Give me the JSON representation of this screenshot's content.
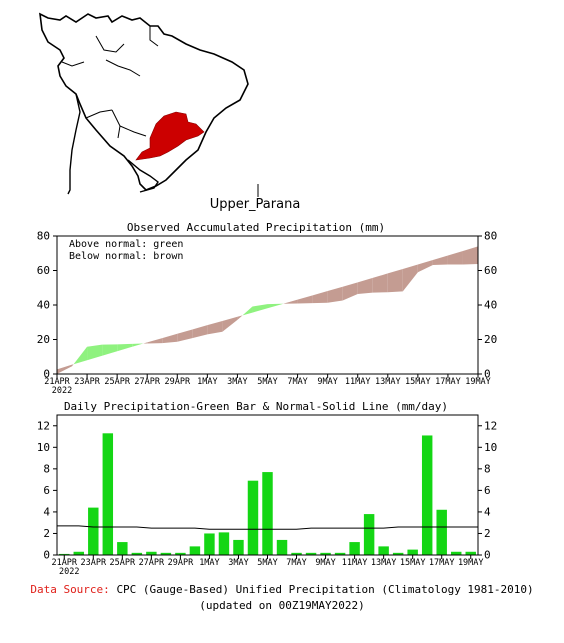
{
  "region_label": "Upper_Parana",
  "colors": {
    "above": "#8ff27f",
    "below": "#c49c92",
    "bar": "#14d614",
    "region": "#cc0000",
    "source_label": "#e0201a"
  },
  "chart_data": [
    {
      "type": "area",
      "title": "Observed Accumulated Precipitation (mm)",
      "legend": [
        "Above normal: green",
        "Below normal: brown"
      ],
      "legend_position": "top-left",
      "xlabel": "",
      "ylabel": "",
      "ylim": [
        0,
        80
      ],
      "yticks": [
        0,
        20,
        40,
        60,
        80
      ],
      "x_tick_labels": [
        "21APR",
        "23APR",
        "25APR",
        "27APR",
        "29APR",
        "1MAY",
        "3MAY",
        "5MAY",
        "7MAY",
        "9MAY",
        "11MAY",
        "13MAY",
        "15MAY",
        "17MAY",
        "19MAY"
      ],
      "x_year_label": "2022",
      "x": [
        "21APR",
        "22APR",
        "23APR",
        "24APR",
        "25APR",
        "26APR",
        "27APR",
        "28APR",
        "29APR",
        "30APR",
        "1MAY",
        "2MAY",
        "3MAY",
        "4MAY",
        "5MAY",
        "6MAY",
        "7MAY",
        "8MAY",
        "9MAY",
        "10MAY",
        "11MAY",
        "12MAY",
        "13MAY",
        "14MAY",
        "15MAY",
        "16MAY",
        "17MAY",
        "18MAY",
        "19MAY"
      ],
      "series": [
        {
          "name": "observed",
          "values": [
            0.1,
            4.5,
            15.8,
            17.0,
            17.2,
            17.5,
            17.7,
            17.9,
            18.7,
            20.8,
            23.0,
            24.5,
            31.4,
            39.1,
            40.5,
            40.7,
            40.9,
            41.1,
            41.3,
            42.6,
            46.4,
            47.2,
            47.4,
            47.9,
            59.0,
            63.2,
            63.5,
            63.5,
            63.8
          ]
        },
        {
          "name": "normal",
          "values": [
            2.7,
            5.4,
            8.0,
            10.6,
            13.2,
            15.8,
            18.3,
            20.8,
            23.3,
            25.8,
            28.3,
            30.7,
            33.2,
            35.6,
            38.1,
            40.6,
            43.1,
            45.6,
            48.1,
            50.6,
            53.1,
            55.7,
            58.3,
            60.9,
            63.5,
            66.1,
            68.7,
            71.3,
            74.0
          ]
        }
      ]
    },
    {
      "type": "bar",
      "title": "Daily Precipitation-Green Bar & Normal-Solid Line (mm/day)",
      "ylim": [
        0,
        13
      ],
      "yticks": [
        0,
        2,
        4,
        6,
        8,
        10,
        12
      ],
      "x_tick_labels": [
        "21APR",
        "23APR",
        "25APR",
        "27APR",
        "29APR",
        "1MAY",
        "3MAY",
        "5MAY",
        "7MAY",
        "9MAY",
        "11MAY",
        "13MAY",
        "15MAY",
        "17MAY",
        "19MAY"
      ],
      "x_year_label": "2022",
      "categories": [
        "21APR",
        "22APR",
        "23APR",
        "24APR",
        "25APR",
        "26APR",
        "27APR",
        "28APR",
        "29APR",
        "30APR",
        "1MAY",
        "2MAY",
        "3MAY",
        "4MAY",
        "5MAY",
        "6MAY",
        "7MAY",
        "8MAY",
        "9MAY",
        "10MAY",
        "11MAY",
        "12MAY",
        "13MAY",
        "14MAY",
        "15MAY",
        "16MAY",
        "17MAY",
        "18MAY",
        "19MAY"
      ],
      "values": [
        0.1,
        0.3,
        4.4,
        11.3,
        1.2,
        0.2,
        0.3,
        0.2,
        0.2,
        0.8,
        2.0,
        2.1,
        1.4,
        6.9,
        7.7,
        1.4,
        0.2,
        0.2,
        0.2,
        0.2,
        1.2,
        3.8,
        0.8,
        0.2,
        0.5,
        11.1,
        4.2,
        0.3,
        0.3
      ],
      "normal": [
        2.7,
        2.7,
        2.6,
        2.6,
        2.6,
        2.6,
        2.5,
        2.5,
        2.5,
        2.5,
        2.4,
        2.4,
        2.4,
        2.4,
        2.4,
        2.4,
        2.4,
        2.5,
        2.5,
        2.5,
        2.5,
        2.5,
        2.5,
        2.6,
        2.6,
        2.6,
        2.6,
        2.6,
        2.6
      ]
    }
  ],
  "footer": {
    "source_label": "Data Source:",
    "source_text": "CPC (Gauge-Based) Unified Precipitation (Climatology 1981-2010)",
    "updated": "(updated on 00Z19MAY2022)"
  }
}
